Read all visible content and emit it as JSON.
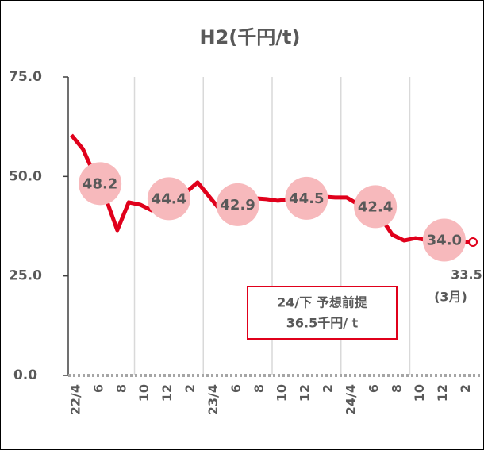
{
  "chart_data": {
    "type": "line",
    "title": "H2(千円/t)",
    "categories": [
      "22/4",
      null,
      "6",
      null,
      "8",
      null,
      "10",
      null,
      "12",
      null,
      "2",
      null,
      "23/4",
      null,
      "6",
      null,
      "8",
      null,
      "10",
      null,
      "12",
      null,
      "2",
      null,
      "24/4",
      null,
      "6",
      null,
      "8",
      null,
      "10",
      null,
      "12",
      null,
      "2",
      null
    ],
    "series": [
      {
        "name": "H2",
        "color": "#e0001b",
        "values": [
          60.4,
          56.9,
          50.5,
          44.5,
          36.5,
          43.5,
          42.9,
          41.5,
          42.5,
          44,
          46,
          48.5,
          45,
          41.5,
          42.5,
          43,
          44.5,
          44.3,
          43.9,
          44.2,
          44.5,
          44.5,
          44.9,
          44.7,
          44.7,
          43,
          41,
          39.5,
          35.3,
          33.9,
          34.5,
          34,
          34,
          33.7,
          33.5,
          33.5
        ]
      }
    ],
    "half_year_averages": {
      "color": "#f7b9bc",
      "values": [
        48.2,
        44.4,
        42.9,
        44.5,
        42.4,
        34.0
      ],
      "value_labels": [
        "48.2",
        "44.4",
        "42.9",
        "44.5",
        "42.4",
        "34.0"
      ]
    },
    "end_value_label": "33.5",
    "end_note": "(3月)",
    "annotation": [
      "24/下 予想前提",
      "36.5千円/ t"
    ],
    "ylim": [
      0,
      75
    ],
    "yticks": [
      {
        "value": 0,
        "label": "0.0"
      },
      {
        "value": 25,
        "label": "25.0"
      },
      {
        "value": 50,
        "label": "50.0"
      },
      {
        "value": 75,
        "label": "75.0"
      }
    ]
  }
}
